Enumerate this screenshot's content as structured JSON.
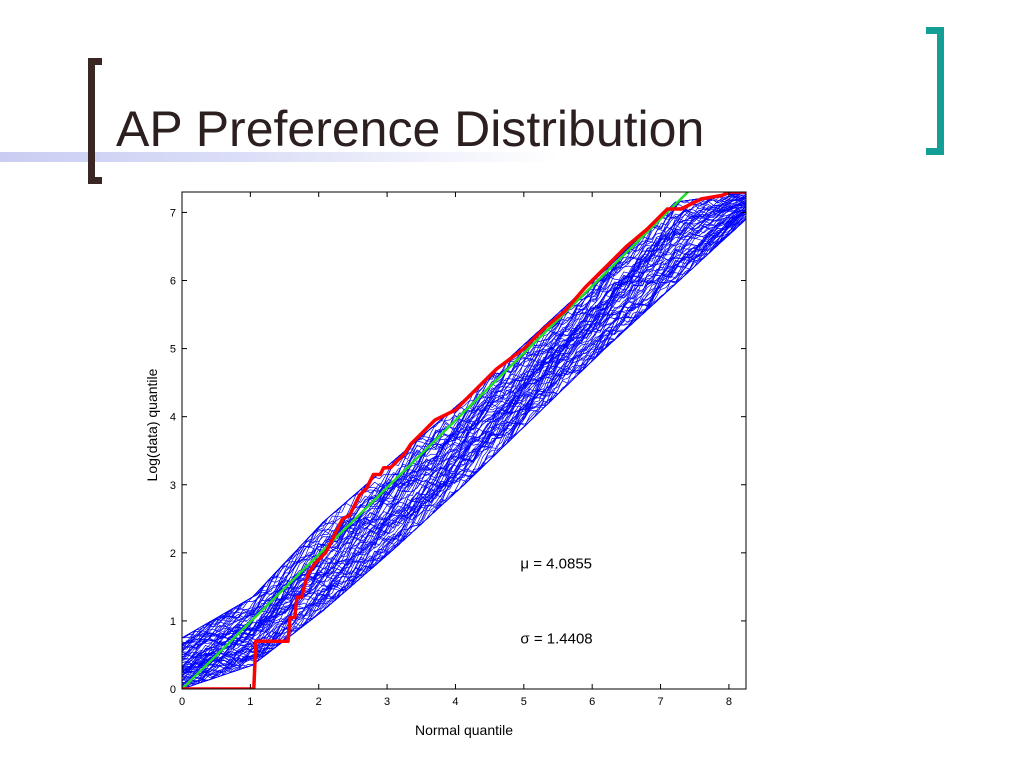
{
  "slide": {
    "title": "AP Preference Distribution",
    "colors": {
      "title": "#2b1f1f",
      "left_bracket": "#3a2622",
      "right_bracket": "#139e96",
      "accent_bar": "#c9cdf2"
    }
  },
  "chart_data": {
    "type": "line",
    "xlabel": "Normal quantile",
    "ylabel": "Log(data) quantile",
    "xlim": [
      0,
      8.25
    ],
    "ylim": [
      0,
      7.3
    ],
    "xticks": [
      0,
      1,
      2,
      3,
      4,
      5,
      6,
      7,
      8
    ],
    "yticks": [
      0,
      1,
      2,
      3,
      4,
      5,
      6,
      7
    ],
    "grid": false,
    "legend": "none",
    "annotations": [
      {
        "text": "μ = 4.0855",
        "x": 4.95,
        "y": 1.77
      },
      {
        "text": "σ = 1.4408",
        "x": 4.95,
        "y": 0.67
      }
    ],
    "series": [
      {
        "role": "simulated-bands",
        "color": "#0000ff",
        "x_start": 0,
        "x_end": 8.25,
        "min_values": [
          0.0,
          0.35,
          1.15,
          2.05,
          3.0,
          4.0,
          5.0,
          5.95,
          6.9
        ],
        "max_values": [
          0.75,
          1.35,
          2.45,
          3.35,
          4.25,
          5.2,
          6.15,
          7.15,
          7.3
        ]
      },
      {
        "role": "fit-line",
        "color": "#22dd22",
        "x": [
          0,
          7.4
        ],
        "y": [
          0,
          7.3
        ]
      },
      {
        "role": "empirical",
        "color": "#ff0000",
        "x": [
          0,
          1.05,
          1.08,
          1.55,
          1.58,
          1.65,
          1.68,
          1.75,
          1.8,
          1.85,
          1.95,
          2.1,
          2.2,
          2.3,
          2.35,
          2.45,
          2.55,
          2.6,
          2.7,
          2.8,
          2.9,
          2.95,
          3.05,
          3.15,
          3.25,
          3.35,
          3.5,
          3.6,
          3.7,
          3.8,
          4.0,
          4.3,
          4.6,
          5.0,
          5.3,
          5.6,
          5.9,
          6.2,
          6.5,
          6.8,
          7.0,
          7.1,
          7.3,
          7.6,
          7.9,
          8.0,
          8.25
        ],
        "y": [
          0,
          0,
          0.7,
          0.7,
          1.05,
          1.05,
          1.35,
          1.35,
          1.55,
          1.7,
          1.85,
          2.0,
          2.2,
          2.4,
          2.5,
          2.55,
          2.75,
          2.85,
          2.95,
          3.15,
          3.15,
          3.25,
          3.25,
          3.35,
          3.45,
          3.6,
          3.75,
          3.85,
          3.95,
          4.0,
          4.1,
          4.4,
          4.7,
          5.0,
          5.3,
          5.55,
          5.9,
          6.2,
          6.5,
          6.75,
          6.95,
          7.05,
          7.05,
          7.2,
          7.25,
          7.3,
          7.3
        ]
      }
    ]
  }
}
